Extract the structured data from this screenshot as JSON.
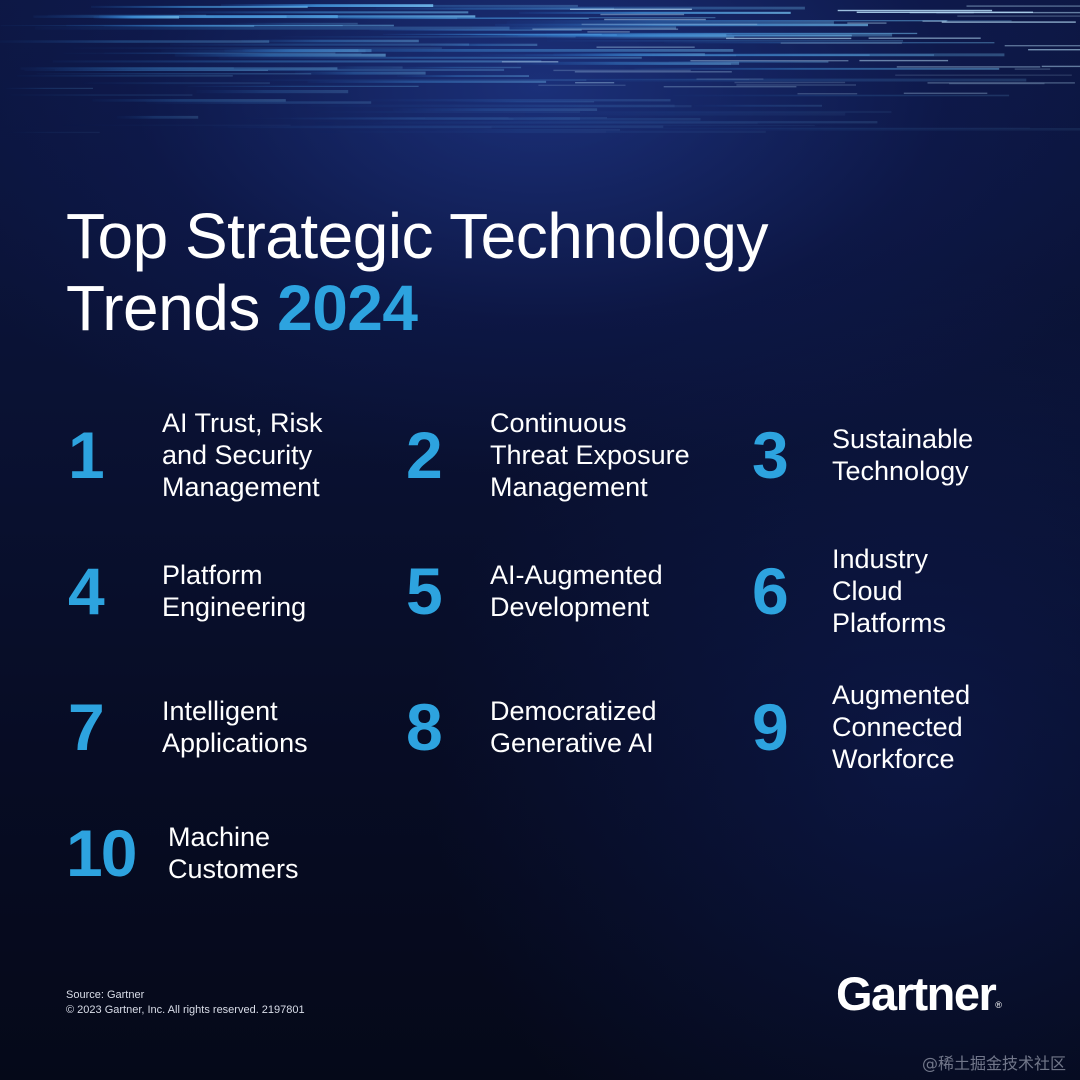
{
  "title": {
    "line1": "Top Strategic Technology",
    "line2": "Trends",
    "year": "2024"
  },
  "trends": [
    {
      "number": "1",
      "label": "AI Trust, Risk\nand Security\nManagement"
    },
    {
      "number": "2",
      "label": "Continuous\nThreat Exposure\nManagement"
    },
    {
      "number": "3",
      "label": "Sustainable\nTechnology"
    },
    {
      "number": "4",
      "label": "Platform\nEngineering"
    },
    {
      "number": "5",
      "label": "AI-Augmented\nDevelopment"
    },
    {
      "number": "6",
      "label": "Industry\nCloud\nPlatforms"
    },
    {
      "number": "7",
      "label": "Intelligent\nApplications"
    },
    {
      "number": "8",
      "label": "Democratized\nGenerative AI"
    },
    {
      "number": "9",
      "label": "Augmented\nConnected\nWorkforce"
    },
    {
      "number": "10",
      "label": "Machine\nCustomers"
    }
  ],
  "footer": {
    "source": "Source: Gartner",
    "copyright": "© 2023 Gartner, Inc. All rights reserved. 2197801"
  },
  "logo": {
    "text": "Gartner",
    "mark": "®"
  },
  "watermark": "@稀土掘金技术社区",
  "colors": {
    "accent": "#2da3df",
    "background": "#0a1234",
    "text": "#ffffff"
  }
}
